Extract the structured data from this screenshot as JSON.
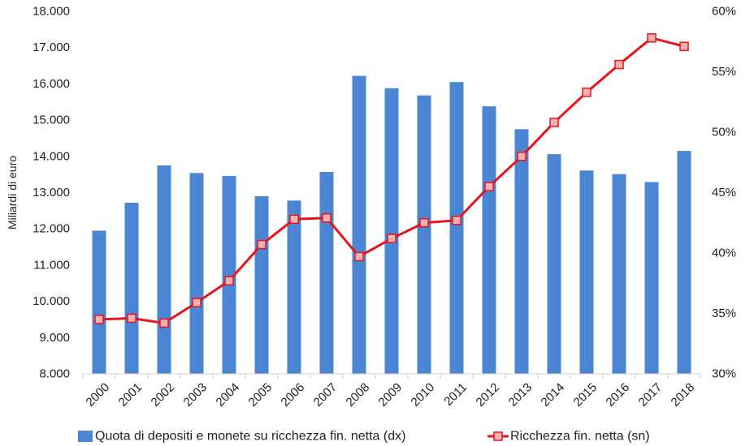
{
  "chart_data": {
    "type": "bar+line",
    "categories": [
      "2000",
      "2001",
      "2002",
      "2003",
      "2004",
      "2005",
      "2006",
      "2007",
      "2008",
      "2009",
      "2010",
      "2011",
      "2012",
      "2013",
      "2014",
      "2015",
      "2016",
      "2017",
      "2018"
    ],
    "left_axis": {
      "label": "Miliardi di euro",
      "ylim": [
        8000,
        18000
      ],
      "ticks": [
        "8.000",
        "9.000",
        "10.000",
        "11.000",
        "12.000",
        "13.000",
        "14.000",
        "15.000",
        "16.000",
        "17.000",
        "18.000"
      ]
    },
    "right_axis": {
      "ylim": [
        0.3,
        0.6
      ],
      "ticks": [
        "30%",
        "35%",
        "40%",
        "45%",
        "50%",
        "55%",
        "60%"
      ]
    },
    "series": [
      {
        "name": "Quota di depositi e monete su ricchezza fin. netta (dx)",
        "kind": "bar",
        "axis": "left",
        "color": "#4a86d4",
        "values": [
          11950,
          12720,
          13750,
          13540,
          13460,
          12900,
          12780,
          13570,
          16220,
          15880,
          15680,
          16050,
          15380,
          14750,
          14060,
          13610,
          13510,
          13290,
          14150
        ]
      },
      {
        "name": "Ricchezza fin. netta (sn)",
        "kind": "line",
        "axis": "right",
        "color": "#e8141b",
        "marker_fill": "#f4b2b4",
        "values": [
          0.345,
          0.346,
          0.342,
          0.359,
          0.377,
          0.407,
          0.428,
          0.429,
          0.397,
          0.412,
          0.425,
          0.427,
          0.455,
          0.48,
          0.508,
          0.533,
          0.556,
          0.578,
          0.571
        ]
      }
    ],
    "grid": false,
    "legend": "bottom"
  }
}
